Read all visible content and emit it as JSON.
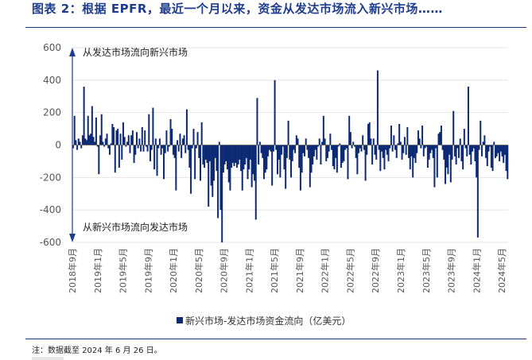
{
  "page": {
    "title": "图表 2：根据 EPFR，最近一个月以来，资金从发达市场流入新兴市场……",
    "note": "注：数据截至 2024 年 6 月 26 日。"
  },
  "colors": {
    "accent": "#1f3d8c",
    "bar": "#0d2a74"
  },
  "chart_data": {
    "type": "bar",
    "title": "",
    "xlabel": "",
    "ylabel": "",
    "ylim": [
      -600,
      600
    ],
    "yticks": [
      600,
      400,
      200,
      0,
      -200,
      -400,
      -600
    ],
    "x_start": "2018-09",
    "x_end": "2024-06",
    "x_tick_labels": [
      "2018年9月",
      "2019年1月",
      "2019年5月",
      "2019年9月",
      "2020年1月",
      "2020年5月",
      "2020年9月",
      "2021年1月",
      "2021年5月",
      "2021年9月",
      "2022年1月",
      "2022年5月",
      "2022年9月",
      "2023年1月",
      "2023年5月",
      "2023年9月",
      "2024年1月",
      "2024年5月"
    ],
    "legend": {
      "position": "bottom",
      "label": "新兴市场-发达市场资金流向（亿美元）"
    },
    "annotations": {
      "up": "从发达市场流向新兴市场",
      "down": "从新兴市场流向发达市场"
    },
    "series": [
      {
        "name": "新兴市场-发达市场资金流向（亿美元）",
        "values": [
          -20,
          180,
          30,
          -30,
          40,
          20,
          -20,
          60,
          360,
          40,
          30,
          180,
          60,
          70,
          240,
          50,
          20,
          170,
          -10,
          -180,
          60,
          190,
          20,
          -10,
          40,
          70,
          -20,
          -60,
          10,
          130,
          110,
          -170,
          90,
          100,
          -140,
          70,
          -90,
          140,
          50,
          -10,
          20,
          60,
          -50,
          60,
          90,
          -110,
          -60,
          80,
          -20,
          40,
          -40,
          110,
          -40,
          90,
          -10,
          -40,
          190,
          -100,
          -30,
          230,
          -150,
          40,
          -190,
          -20,
          40,
          -60,
          -20,
          -210,
          -50,
          90,
          -40,
          -10,
          160,
          100,
          -60,
          -80,
          -280,
          30,
          -40,
          70,
          -80,
          40,
          60,
          -50,
          220,
          -30,
          -140,
          -300,
          -20,
          100,
          -210,
          -20,
          80,
          -80,
          -220,
          140,
          -120,
          -140,
          -90,
          -110,
          -380,
          -100,
          -250,
          -320,
          -220,
          -80,
          -160,
          -450,
          20,
          -400,
          -600,
          -170,
          -120,
          -100,
          -150,
          -230,
          -280,
          -140,
          -110,
          -130,
          -110,
          -140,
          -120,
          -90,
          -160,
          -280,
          -150,
          -120,
          -80,
          -210,
          -150,
          -90,
          -260,
          -180,
          -220,
          -460,
          290,
          -120,
          20,
          -50,
          -80,
          -210,
          -170,
          -150,
          -70,
          -30,
          -40,
          -250,
          -40,
          400,
          -30,
          -180,
          -90,
          -200,
          -60,
          -10,
          -150,
          -270,
          -80,
          150,
          -90,
          -200,
          -100,
          -30,
          -50,
          60,
          40,
          -140,
          -280,
          -170,
          -50,
          -70,
          40,
          -30,
          -80,
          -260,
          -170,
          -120,
          -70,
          -30,
          -90,
          -10,
          40,
          -120,
          20,
          180,
          40,
          -100,
          -80,
          -40,
          70,
          -30,
          -130,
          -150,
          -80,
          -170,
          -10,
          10,
          -140,
          -110,
          -100,
          -30,
          -20,
          -210,
          180,
          80,
          -20,
          20,
          -10,
          -80,
          -180,
          -50,
          -20,
          -40,
          60,
          -30,
          -220,
          -60,
          130,
          140,
          40,
          -120,
          40,
          -60,
          -90,
          460,
          -30,
          -160,
          -40,
          -80,
          -150,
          -30,
          -60,
          -100,
          -20,
          120,
          -40,
          60,
          -30,
          -80,
          10,
          130,
          20,
          -90,
          -50,
          50,
          -60,
          110,
          -80,
          -150,
          -70,
          -200,
          -80,
          -110,
          -50,
          90,
          40,
          -20,
          120,
          -70,
          -20,
          -10,
          -140,
          -90,
          -50,
          -30,
          -80,
          -260,
          -20,
          -200,
          70,
          80,
          120,
          -30,
          -90,
          -240,
          -140,
          -180,
          -60,
          -230,
          -90,
          210,
          -70,
          -120,
          -20,
          -80,
          40,
          -100,
          -150,
          100,
          -20,
          -70,
          360,
          -60,
          -120,
          -40,
          -20,
          -100,
          -200,
          -570,
          -30,
          150,
          -70,
          20,
          60,
          -80,
          -130,
          -40,
          -10,
          -140,
          -160,
          20,
          -80,
          -70,
          -50,
          -100,
          -40,
          -70,
          -110,
          -60,
          -160,
          -210
        ]
      }
    ]
  }
}
